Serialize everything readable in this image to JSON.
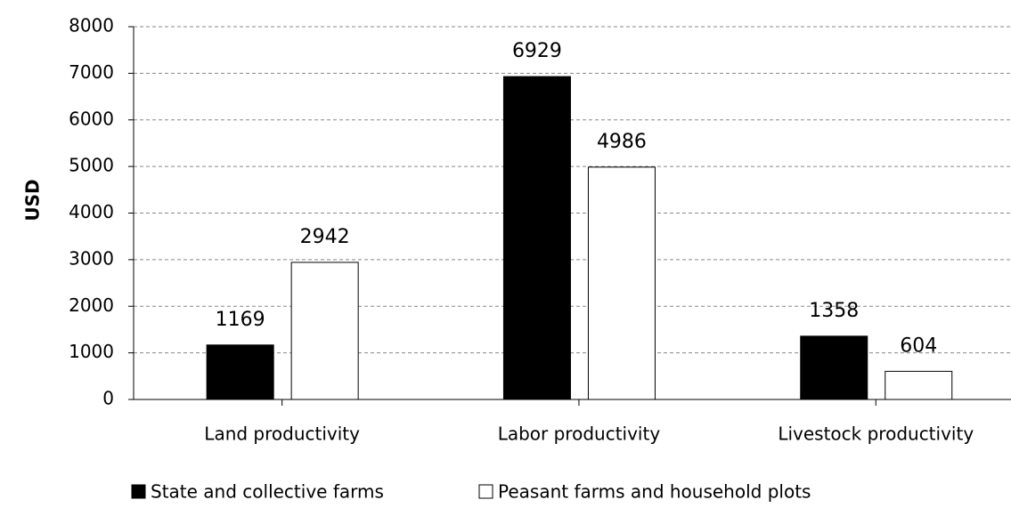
{
  "chart_data": {
    "type": "bar",
    "y_label": "USD",
    "categories": [
      "Land productivity",
      "Labor productivity",
      "Livestock productivity"
    ],
    "series": [
      {
        "name": "State and collective farms",
        "color": "#000000",
        "values": [
          1169,
          6929,
          1358
        ]
      },
      {
        "name": "Peasant farms and household plots",
        "color": "#ffffff",
        "values": [
          2942,
          4986,
          604
        ]
      }
    ],
    "ylim": [
      0,
      8000
    ],
    "yticks": [
      0,
      1000,
      2000,
      3000,
      4000,
      5000,
      6000,
      7000,
      8000
    ],
    "grid": true,
    "legend": "bottom"
  }
}
